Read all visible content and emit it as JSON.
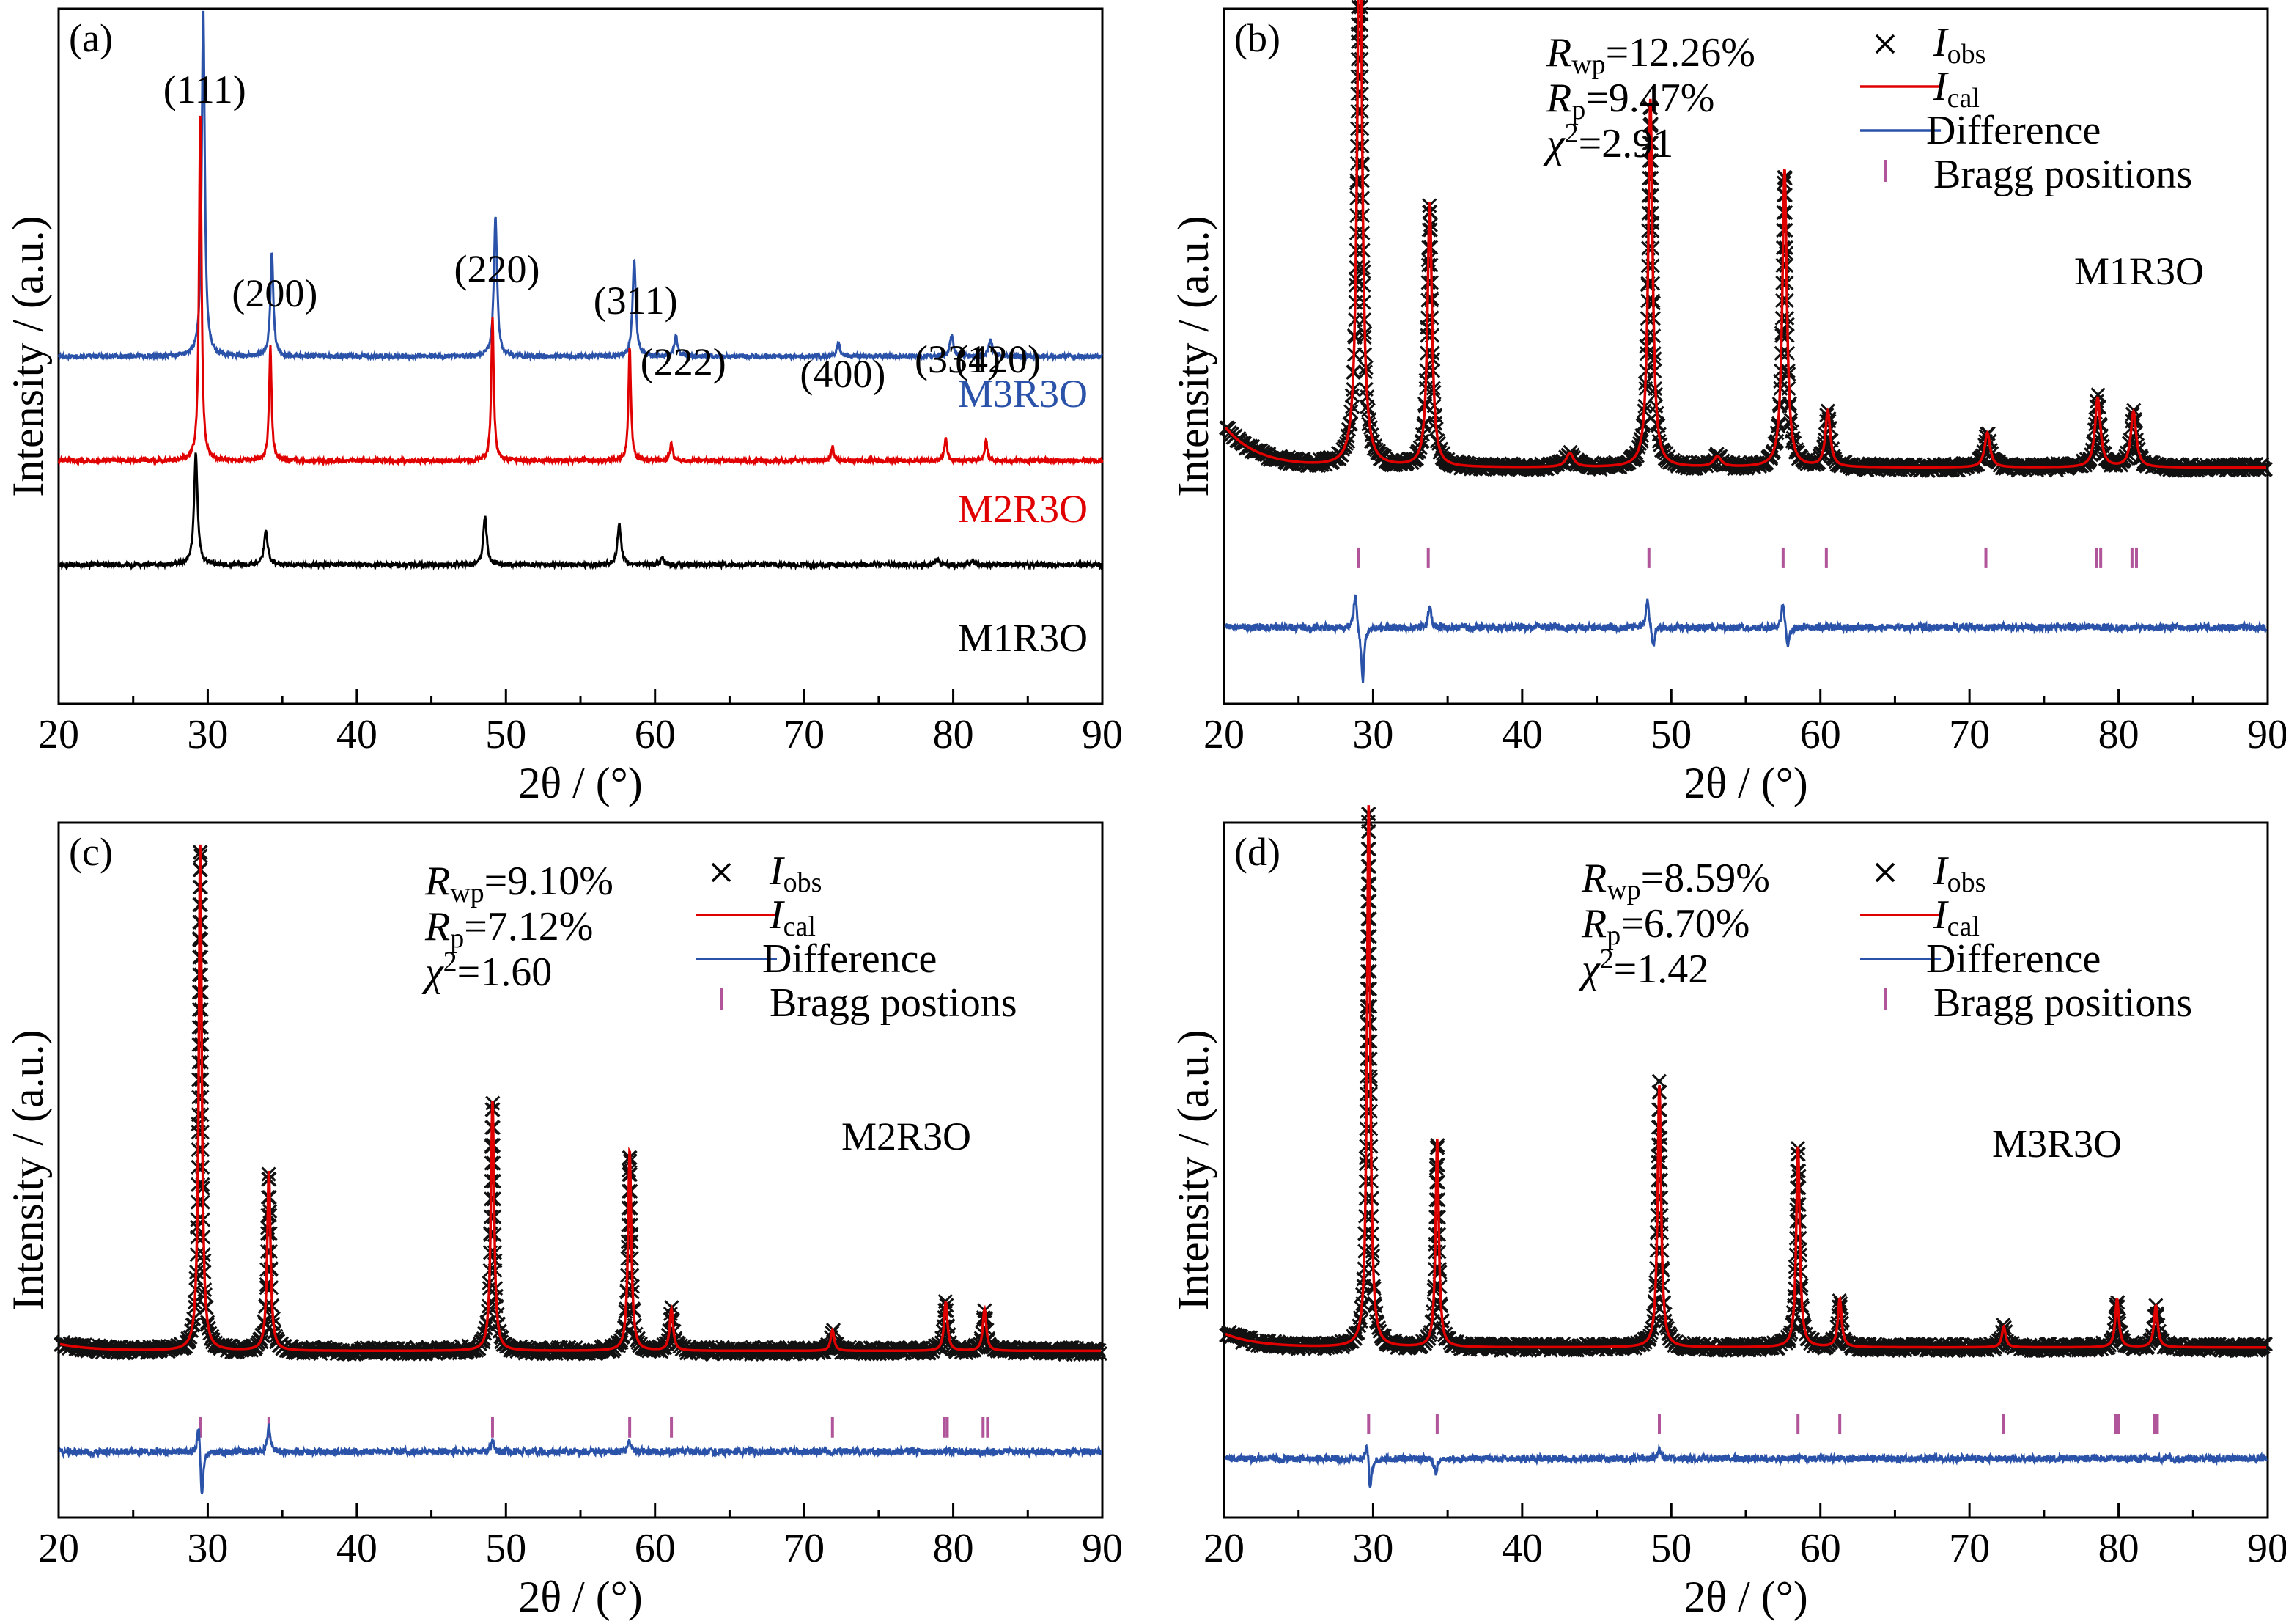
{
  "chart_data": [
    {
      "panel": "(a)",
      "type": "line",
      "xlabel": "2θ / (°)",
      "ylabel": "Intensity / (a.u.)",
      "xlim": [
        20,
        90
      ],
      "xticks": [
        20,
        30,
        40,
        50,
        60,
        70,
        80,
        90
      ],
      "peak_labels": [
        {
          "text": "(111)",
          "x": 29.6
        },
        {
          "text": "(200)",
          "x": 34.3
        },
        {
          "text": "(220)",
          "x": 49.2
        },
        {
          "text": "(311)",
          "x": 58.5
        },
        {
          "text": "(222)",
          "x": 61.5
        },
        {
          "text": "(400)",
          "x": 72.2
        },
        {
          "text": "(331)",
          "x": 79.9
        },
        {
          "text": "(420)",
          "x": 82.6
        }
      ],
      "series": [
        {
          "name": "M3R3O",
          "color": "#2a52a8",
          "baseline": 0.5,
          "peaks": [
            [
              29.7,
              0.5,
              0.12
            ],
            [
              34.3,
              0.15,
              0.12
            ],
            [
              49.3,
              0.2,
              0.13
            ],
            [
              58.6,
              0.14,
              0.13
            ],
            [
              61.4,
              0.03,
              0.13
            ],
            [
              72.3,
              0.02,
              0.13
            ],
            [
              79.9,
              0.03,
              0.14
            ],
            [
              82.5,
              0.025,
              0.14
            ]
          ]
        },
        {
          "name": "M2R3O",
          "color": "#e00000",
          "baseline": 0.35,
          "peaks": [
            [
              29.5,
              0.5,
              0.1
            ],
            [
              34.2,
              0.165,
              0.1
            ],
            [
              49.1,
              0.21,
              0.1
            ],
            [
              58.3,
              0.165,
              0.1
            ],
            [
              61.1,
              0.025,
              0.1
            ],
            [
              71.9,
              0.02,
              0.1
            ],
            [
              79.5,
              0.035,
              0.1
            ],
            [
              82.2,
              0.03,
              0.1
            ]
          ]
        },
        {
          "name": "M1R3O",
          "color": "#000000",
          "baseline": 0.2,
          "peaks": [
            [
              29.2,
              0.16,
              0.14
            ],
            [
              33.9,
              0.05,
              0.14
            ],
            [
              48.6,
              0.07,
              0.14
            ],
            [
              57.6,
              0.06,
              0.14
            ],
            [
              60.5,
              0.01,
              0.14
            ],
            [
              78.9,
              0.008,
              0.14
            ],
            [
              81.3,
              0.006,
              0.14
            ]
          ]
        }
      ]
    },
    {
      "panel": "(b)",
      "type": "scatter",
      "sample": "M1R3O",
      "xlabel": "2θ / (°)",
      "ylabel": "Intensity / (a.u.)",
      "xlim": [
        20,
        90
      ],
      "xticks": [
        20,
        30,
        40,
        50,
        60,
        70,
        80,
        90
      ],
      "stats": {
        "Rwp": "=12.26%",
        "Rp": "=9.47%",
        "chi2": "=2.91"
      },
      "legend": [
        "I",
        "I",
        "Difference",
        "Bragg positions"
      ],
      "legend_sub": [
        "obs",
        "cal"
      ],
      "background": 0.34,
      "low_angle_rise": 0.06,
      "peaks": [
        [
          29.1,
          0.9,
          0.18
        ],
        [
          33.8,
          0.38,
          0.18
        ],
        [
          48.6,
          0.53,
          0.18
        ],
        [
          57.6,
          0.43,
          0.18
        ],
        [
          60.5,
          0.08,
          0.2
        ],
        [
          71.2,
          0.05,
          0.22
        ],
        [
          78.6,
          0.1,
          0.22
        ],
        [
          81.0,
          0.08,
          0.22
        ],
        [
          43.2,
          0.02,
          0.3
        ],
        [
          53.1,
          0.015,
          0.3
        ]
      ],
      "bragg_positions": [
        29.0,
        33.7,
        48.5,
        57.5,
        60.4,
        71.1,
        78.5,
        78.8,
        80.9,
        81.2
      ],
      "diff_level": 0.11,
      "diff_spikes": [
        [
          28.8,
          0.05
        ],
        [
          29.3,
          -0.08
        ],
        [
          33.8,
          0.03
        ],
        [
          48.4,
          0.04
        ],
        [
          48.8,
          -0.03
        ],
        [
          57.5,
          0.04
        ],
        [
          57.8,
          -0.03
        ]
      ]
    },
    {
      "panel": "(c)",
      "type": "scatter",
      "sample": "M2R3O",
      "xlabel": "2θ / (°)",
      "ylabel": "Intensity / (a.u.)",
      "xlim": [
        20,
        90
      ],
      "xticks": [
        20,
        30,
        40,
        50,
        60,
        70,
        80,
        90
      ],
      "stats": {
        "Rwp": "=9.10%",
        "Rp": "=7.12%",
        "chi2": "=1.60"
      },
      "legend": [
        "I",
        "I",
        "Difference",
        "Bragg postions"
      ],
      "legend_sub": [
        "obs",
        "cal"
      ],
      "background": 0.24,
      "low_angle_rise": 0.01,
      "peaks": [
        [
          29.5,
          0.73,
          0.12
        ],
        [
          34.1,
          0.26,
          0.13
        ],
        [
          49.1,
          0.36,
          0.13
        ],
        [
          58.3,
          0.29,
          0.13
        ],
        [
          61.1,
          0.06,
          0.14
        ],
        [
          71.9,
          0.03,
          0.14
        ],
        [
          79.5,
          0.07,
          0.14
        ],
        [
          82.1,
          0.06,
          0.14
        ]
      ],
      "bragg_positions": [
        29.5,
        34.1,
        49.1,
        58.3,
        61.1,
        71.9,
        79.4,
        79.6,
        82.0,
        82.3
      ],
      "diff_level": 0.095,
      "diff_spikes": [
        [
          29.4,
          0.05
        ],
        [
          29.6,
          -0.07
        ],
        [
          34.1,
          0.035
        ],
        [
          49.1,
          0.015
        ],
        [
          58.3,
          0.015
        ]
      ]
    },
    {
      "panel": "(d)",
      "type": "scatter",
      "sample": "M3R3O",
      "xlabel": "2θ / (°)",
      "ylabel": "Intensity / (a.u.)",
      "xlim": [
        20,
        90
      ],
      "xticks": [
        20,
        30,
        40,
        50,
        60,
        70,
        80,
        90
      ],
      "stats": {
        "Rwp": "=8.59%",
        "Rp": "=6.70%",
        "chi2": "=1.42"
      },
      "legend": [
        "I",
        "I",
        "Difference",
        "Bragg positions"
      ],
      "legend_sub": [
        "obs",
        "cal"
      ],
      "background": 0.245,
      "low_angle_rise": 0.02,
      "peaks": [
        [
          29.7,
          0.78,
          0.13
        ],
        [
          34.3,
          0.3,
          0.13
        ],
        [
          49.2,
          0.38,
          0.14
        ],
        [
          58.5,
          0.29,
          0.14
        ],
        [
          61.3,
          0.07,
          0.15
        ],
        [
          72.3,
          0.03,
          0.15
        ],
        [
          79.9,
          0.07,
          0.15
        ],
        [
          82.5,
          0.06,
          0.15
        ]
      ],
      "bragg_positions": [
        29.7,
        34.3,
        49.2,
        58.5,
        61.3,
        72.3,
        79.8,
        80.0,
        82.4,
        82.6
      ],
      "diff_level": 0.085,
      "diff_spikes": [
        [
          29.6,
          0.03
        ],
        [
          29.8,
          -0.05
        ],
        [
          34.2,
          -0.02
        ],
        [
          49.2,
          0.012
        ]
      ]
    }
  ]
}
